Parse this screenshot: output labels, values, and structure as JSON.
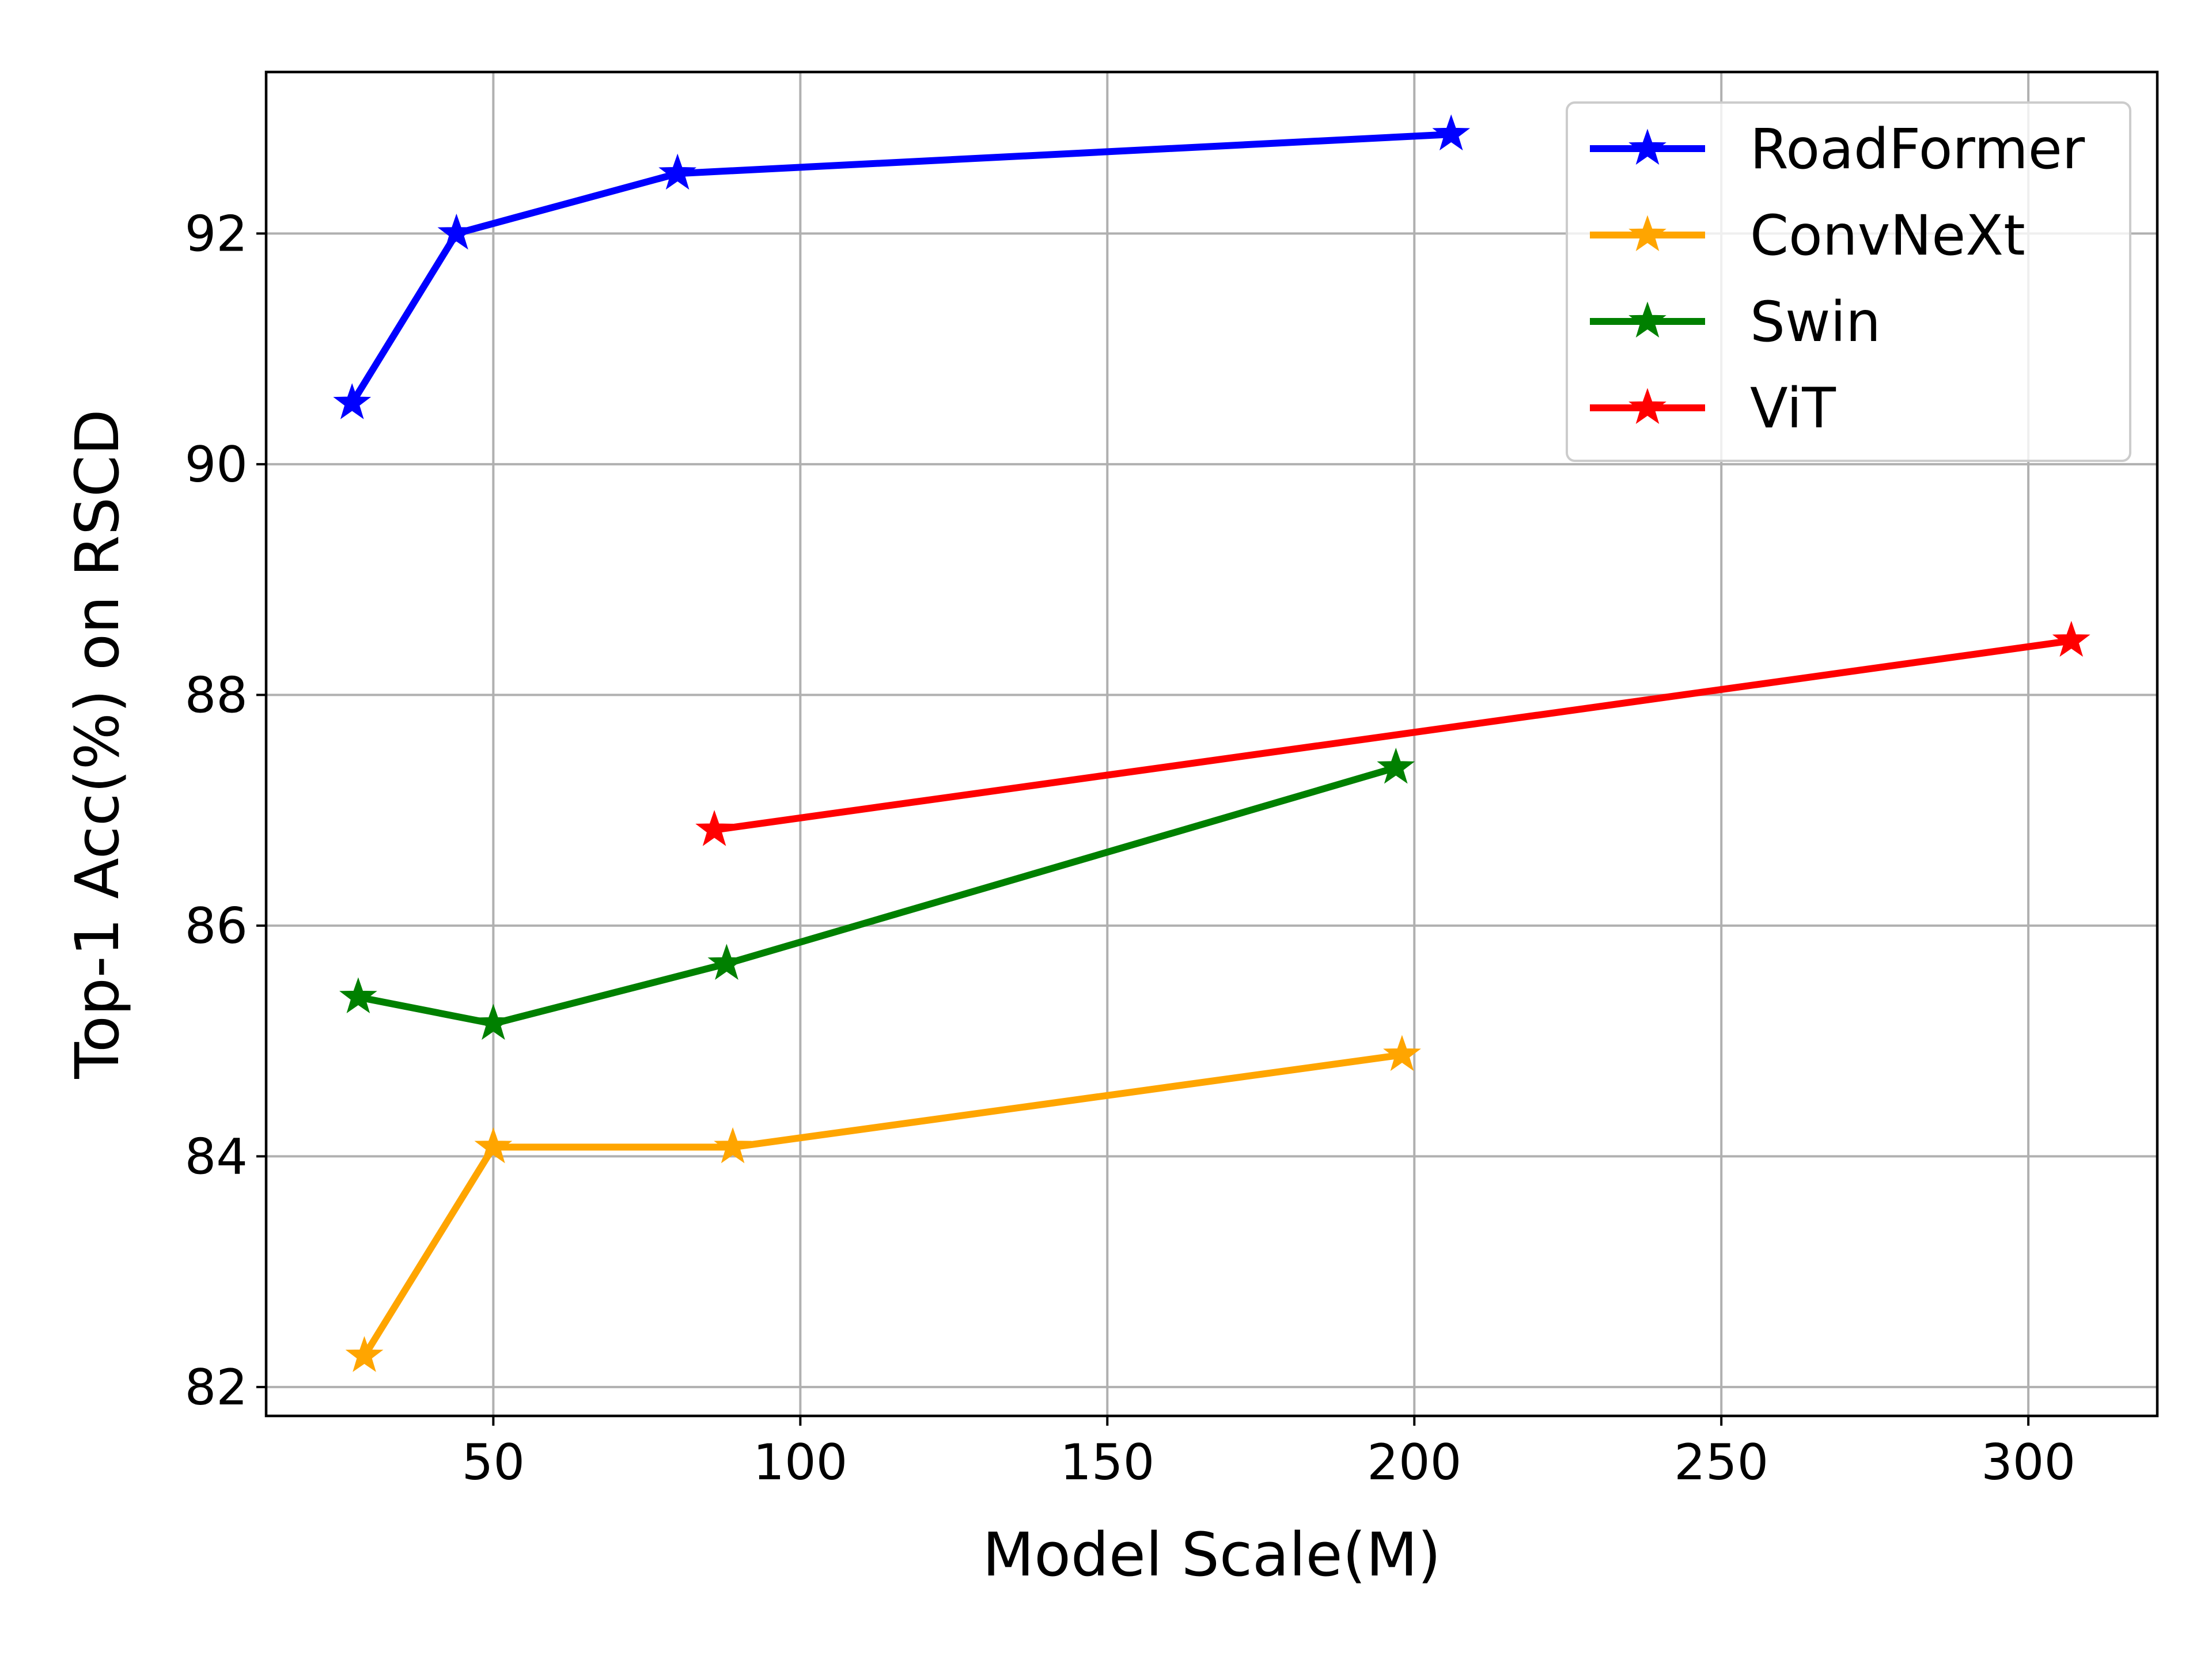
{
  "chart_data": {
    "type": "line",
    "title": "",
    "xlabel": "Model Scale(M)",
    "ylabel": "Top-1 Acc(%) on RSCD",
    "xlim": [
      13,
      321
    ],
    "ylim": [
      81.75,
      93.4
    ],
    "xticks": [
      50,
      100,
      150,
      200,
      250,
      300
    ],
    "yticks": [
      82,
      84,
      86,
      88,
      90,
      92
    ],
    "grid": true,
    "legend_position": "top-right",
    "marker": "star",
    "series": [
      {
        "name": "RoadFormer",
        "color": "#0000ff",
        "x": [
          27,
          44,
          80,
          206
        ],
        "y": [
          90.53,
          92.0,
          92.52,
          92.86
        ]
      },
      {
        "name": "ConvNeXt",
        "color": "#ffa500",
        "x": [
          29,
          50,
          89,
          198
        ],
        "y": [
          82.27,
          84.08,
          84.08,
          84.88
        ]
      },
      {
        "name": "Swin",
        "color": "#008000",
        "x": [
          28,
          50,
          88,
          197
        ],
        "y": [
          85.38,
          85.15,
          85.67,
          87.37
        ]
      },
      {
        "name": "ViT",
        "color": "#ff0000",
        "x": [
          86,
          307
        ],
        "y": [
          86.83,
          88.47
        ]
      }
    ]
  }
}
